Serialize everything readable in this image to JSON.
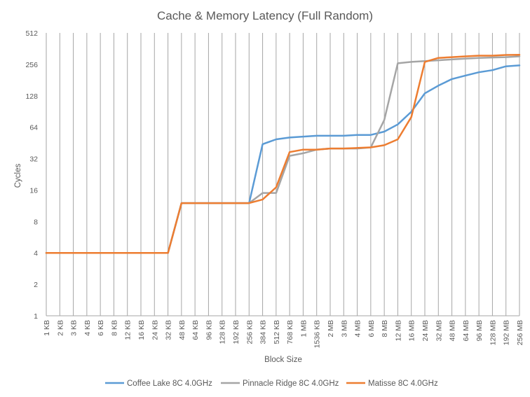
{
  "chart_data": {
    "type": "line",
    "title": "Cache & Memory Latency (Full Random)",
    "xlabel": "Block Size",
    "ylabel": "Cycles",
    "y_scale": "log2",
    "ylim": [
      1,
      512
    ],
    "yticks": [
      1,
      2,
      4,
      8,
      16,
      32,
      64,
      128,
      256,
      512
    ],
    "grid": "vertical lines at each category",
    "legend_position": "bottom",
    "categories": [
      "1 KB",
      "2 KB",
      "3 KB",
      "4 KB",
      "6 KB",
      "8 KB",
      "12 KB",
      "16 KB",
      "24 KB",
      "32 KB",
      "48 KB",
      "64 KB",
      "96 KB",
      "128 KB",
      "192 KB",
      "256 KB",
      "384 KB",
      "512 KB",
      "768 KB",
      "1 MB",
      "1536 KB",
      "2 MB",
      "3 MB",
      "4 MB",
      "6 MB",
      "8 MB",
      "12 MB",
      "16 MB",
      "24 MB",
      "32 MB",
      "48 MB",
      "64 MB",
      "96 MB",
      "128 MB",
      "192 MB",
      "256 MB"
    ],
    "series": [
      {
        "name": "Coffee Lake 8C 4.0GHz",
        "color": "#5B9BD5",
        "values": [
          4,
          4,
          4,
          4,
          4,
          4,
          4,
          4,
          4,
          4,
          12,
          12,
          12,
          12,
          12,
          12,
          44,
          49,
          51,
          52,
          53,
          53,
          53,
          54,
          54,
          58,
          68,
          90,
          135,
          160,
          185,
          200,
          215,
          225,
          245,
          250
        ]
      },
      {
        "name": "Pinnacle Ridge 8C 4.0GHz",
        "color": "#A5A5A5",
        "values": [
          4,
          4,
          4,
          4,
          4,
          4,
          4,
          4,
          4,
          4,
          12,
          12,
          12,
          12,
          12,
          12,
          15,
          15,
          34,
          36,
          39,
          40,
          40,
          40,
          41,
          75,
          262,
          270,
          275,
          280,
          285,
          290,
          295,
          298,
          300,
          305
        ]
      },
      {
        "name": "Matisse 8C 4.0GHz",
        "color": "#ED7D31",
        "values": [
          4,
          4,
          4,
          4,
          4,
          4,
          4,
          4,
          4,
          4,
          12,
          12,
          12,
          12,
          12,
          12,
          13,
          17,
          37,
          39,
          39,
          40,
          40,
          40.5,
          41,
          43,
          49,
          80,
          270,
          295,
          300,
          305,
          310,
          310,
          315,
          316
        ]
      }
    ]
  }
}
